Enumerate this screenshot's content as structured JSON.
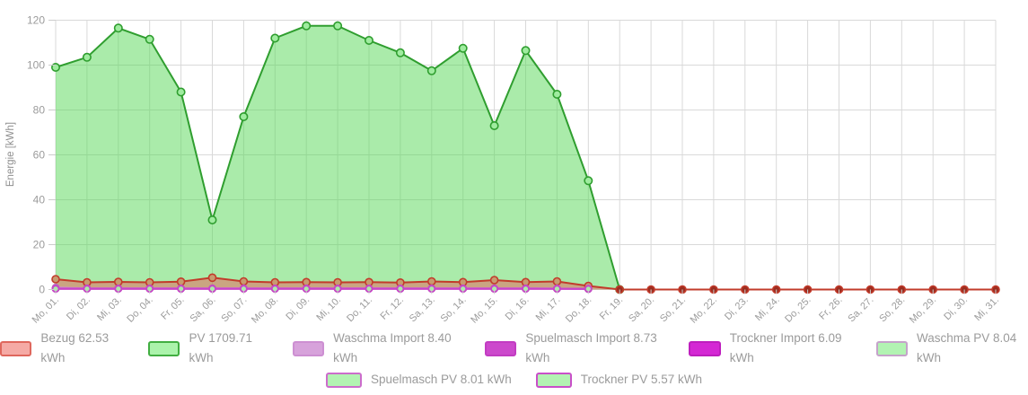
{
  "chart_data": {
    "type": "area",
    "title": "",
    "ylabel": "Energie [kWh]",
    "ylim": [
      0,
      120
    ],
    "y_ticks": [
      0,
      20,
      40,
      60,
      80,
      100,
      120
    ],
    "grid": true,
    "legend_position": "bottom",
    "x": [
      "Mo, 01.",
      "Di, 02.",
      "Mi, 03.",
      "Do, 04.",
      "Fr, 05.",
      "Sa, 06.",
      "So, 07.",
      "Mo, 08.",
      "Di, 09.",
      "Mi, 10.",
      "Do, 11.",
      "Fr, 12.",
      "Sa, 13.",
      "So, 14.",
      "Mo, 15.",
      "Di, 16.",
      "Mi, 17.",
      "Do, 18.",
      "Fr, 19.",
      "Sa, 20.",
      "So, 21.",
      "Mo, 22.",
      "Di, 23.",
      "Mi, 24.",
      "Do, 25.",
      "Fr, 26.",
      "Sa, 27.",
      "So, 28.",
      "Mo, 29.",
      "Di, 30.",
      "Mi, 31."
    ],
    "series": [
      {
        "name": "PV",
        "legend_label": "PV 1709.71 kWh",
        "total_kwh": 1709.71,
        "line_color": "#2f9e2f",
        "fill_color": "rgba(85,215,85,0.5)",
        "marker_stroke": "#2f9e2f",
        "marker_fill": "#9fec9f",
        "marker_radius": 4.2,
        "values": [
          99,
          103.5,
          116.5,
          111.5,
          88,
          31,
          77,
          112,
          117.5,
          117.5,
          111,
          105.5,
          97.5,
          107.5,
          73,
          106.5,
          87,
          48.5,
          0,
          null,
          null,
          null,
          null,
          null,
          null,
          null,
          null,
          null,
          null,
          null,
          null
        ]
      },
      {
        "name": "Bezug",
        "legend_label": "Bezug 62.53 kWh",
        "total_kwh": 62.53,
        "line_color": "#c23b2b",
        "fill_color": "rgba(228,108,96,0.55)",
        "marker_stroke": "#c23b2b",
        "marker_fill": "#c89b6f",
        "marker_fill_zero": "#9a2d20",
        "marker_radius": 4,
        "values": [
          4.6,
          3.2,
          3.4,
          3.2,
          3.5,
          5.3,
          3.6,
          3.2,
          3.3,
          3.2,
          3.3,
          3.1,
          3.6,
          3.3,
          4.2,
          3.3,
          3.6,
          1.6,
          0,
          0,
          0,
          0,
          0,
          0,
          0,
          0,
          0,
          0,
          0,
          0,
          0
        ]
      },
      {
        "name": "Waschma Import",
        "legend_label": "Waschma Import 8.40 kWh",
        "total_kwh": 8.4,
        "line_color": "#cf8fd3",
        "fill_color": "rgba(207,143,211,0.65)",
        "marker_stroke": "#b86fbe",
        "marker_fill": "#cf8fd3",
        "marker_radius": 3.6,
        "values": [
          0.9,
          0.5,
          0.4,
          0.5,
          0.4,
          0.5,
          0.5,
          0.4,
          0.5,
          0.4,
          0.5,
          0.4,
          0.5,
          0.5,
          0.4,
          0.5,
          0.4,
          0.2,
          null,
          null,
          null,
          null,
          null,
          null,
          null,
          null,
          null,
          null,
          null,
          null,
          null
        ]
      },
      {
        "name": "Spuelmasch Import",
        "legend_label": "Spuelmasch Import 8.73 kWh",
        "total_kwh": 8.73,
        "line_color": "#cc44cc",
        "fill_color": "rgba(204,68,204,0.65)",
        "marker_stroke": "#a834a8",
        "marker_fill": "#cc44cc",
        "marker_radius": 3.6,
        "values": [
          0.5,
          0.5,
          0.5,
          0.5,
          0.5,
          0.5,
          0.5,
          0.5,
          0.5,
          0.5,
          0.5,
          0.5,
          0.5,
          0.5,
          0.5,
          0.5,
          0.4,
          0.33,
          null,
          null,
          null,
          null,
          null,
          null,
          null,
          null,
          null,
          null,
          null,
          null,
          null
        ]
      },
      {
        "name": "Trockner Import",
        "legend_label": "Trockner Import 6.09 kWh",
        "total_kwh": 6.09,
        "line_color": "#d21fd2",
        "fill_color": "rgba(210,31,210,0.65)",
        "marker_stroke": "#ab18ab",
        "marker_fill": "#d21fd2",
        "marker_radius": 3.6,
        "values": [
          0.34,
          0.34,
          0.34,
          0.34,
          0.34,
          0.34,
          0.34,
          0.34,
          0.34,
          0.34,
          0.34,
          0.34,
          0.34,
          0.34,
          0.34,
          0.34,
          0.34,
          0.31,
          null,
          null,
          null,
          null,
          null,
          null,
          null,
          null,
          null,
          null,
          null,
          null,
          null
        ]
      },
      {
        "name": "Waschma PV",
        "legend_label": "Waschma PV 8.04 kWh",
        "total_kwh": 8.04,
        "line_color": "#c9a0ce",
        "fill_color": "rgba(140,240,140,0.5)",
        "marker_stroke": "#c9a0ce",
        "marker_fill": "#aaeeaa",
        "marker_radius": 3.4,
        "values": [
          0.45,
          0.45,
          0.45,
          0.45,
          0.45,
          0.45,
          0.45,
          0.45,
          0.45,
          0.45,
          0.45,
          0.45,
          0.45,
          0.45,
          0.45,
          0.45,
          0.44,
          0.4,
          null,
          null,
          null,
          null,
          null,
          null,
          null,
          null,
          null,
          null,
          null,
          null,
          null
        ]
      },
      {
        "name": "Spuelmasch PV",
        "legend_label": "Spuelmasch PV 8.01 kWh",
        "total_kwh": 8.01,
        "line_color": "#cc5ccc",
        "fill_color": "rgba(140,240,140,0.5)",
        "marker_stroke": "#cc5ccc",
        "marker_fill": "#aaeeaa",
        "marker_radius": 3.4,
        "values": [
          0.45,
          0.45,
          0.45,
          0.45,
          0.45,
          0.45,
          0.45,
          0.45,
          0.45,
          0.45,
          0.45,
          0.45,
          0.45,
          0.45,
          0.45,
          0.45,
          0.41,
          0.4,
          null,
          null,
          null,
          null,
          null,
          null,
          null,
          null,
          null,
          null,
          null,
          null,
          null
        ]
      },
      {
        "name": "Trockner PV",
        "legend_label": "Trockner PV 5.57 kWh",
        "total_kwh": 5.57,
        "line_color": "#c944c9",
        "fill_color": "rgba(140,240,140,0.5)",
        "marker_stroke": "#c944c9",
        "marker_fill": "#aaeeaa",
        "marker_radius": 3.4,
        "values": [
          0.31,
          0.31,
          0.31,
          0.31,
          0.31,
          0.31,
          0.31,
          0.31,
          0.31,
          0.31,
          0.31,
          0.31,
          0.31,
          0.31,
          0.31,
          0.31,
          0.31,
          0.3,
          null,
          null,
          null,
          null,
          null,
          null,
          null,
          null,
          null,
          null,
          null,
          null,
          null
        ]
      }
    ]
  },
  "legend": {
    "row_layout": [
      6,
      2
    ],
    "items": [
      {
        "label": "Bezug 62.53 kWh",
        "fill": "#f5aaa5",
        "border": "#df675d"
      },
      {
        "label": "PV 1709.71 kWh",
        "fill": "#abf3ab",
        "border": "#41ae41"
      },
      {
        "label": "Waschma Import 8.40 kWh",
        "fill": "#d7a2db",
        "border": "#cd8fd2"
      },
      {
        "label": "Spuelmasch Import 8.73 kWh",
        "fill": "#cc49cc",
        "border": "#c23cc2"
      },
      {
        "label": "Trockner Import 6.09 kWh",
        "fill": "#d428d4",
        "border": "#be1ebe"
      },
      {
        "label": "Waschma PV 8.04 kWh",
        "fill": "#b2f3b2",
        "border": "#c5a2ca"
      },
      {
        "label": "Spuelmasch PV 8.01 kWh",
        "fill": "#b2f3b2",
        "border": "#cc6ccc"
      },
      {
        "label": "Trockner PV 5.57 kWh",
        "fill": "#b2f3b2",
        "border": "#c94fc9"
      }
    ]
  },
  "colors": {
    "grid": "#d9d9d9",
    "tick": "#cccccc",
    "axis_text": "#9b9b9b"
  }
}
